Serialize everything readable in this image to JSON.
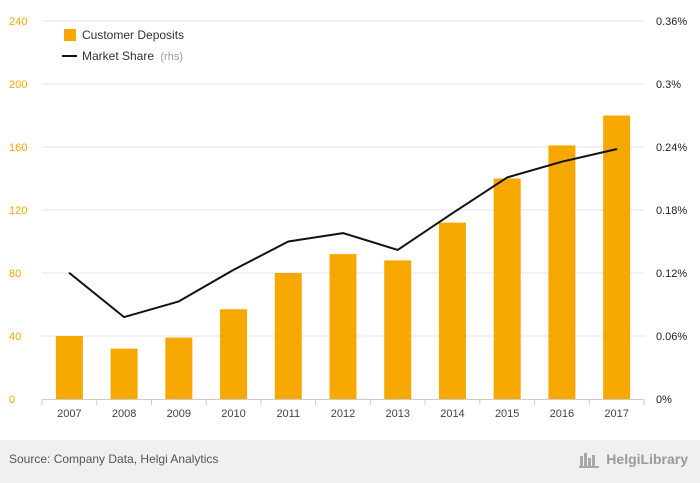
{
  "chart_data": {
    "type": "bar",
    "categories": [
      "2007",
      "2008",
      "2009",
      "2010",
      "2011",
      "2012",
      "2013",
      "2014",
      "2015",
      "2016",
      "2017"
    ],
    "series": [
      {
        "name": "Customer Deposits",
        "type": "bar",
        "axis": "left",
        "values": [
          40,
          32,
          39,
          57,
          80,
          92,
          88,
          112,
          140,
          161,
          180
        ]
      },
      {
        "name": "Market Share",
        "name_suffix": "(rhs)",
        "type": "line",
        "axis": "right",
        "values": [
          0.12,
          0.078,
          0.093,
          0.123,
          0.15,
          0.158,
          0.142,
          0.177,
          0.211,
          0.226,
          0.238
        ]
      }
    ],
    "y_left": {
      "min": 0,
      "max": 240,
      "ticks": [
        "0",
        "40",
        "80",
        "120",
        "160",
        "200",
        "240"
      ]
    },
    "y_right": {
      "min": 0,
      "max": 0.36,
      "ticks": [
        "0%",
        "0.06%",
        "0.12%",
        "0.18%",
        "0.24%",
        "0.3%",
        "0.36%"
      ]
    },
    "grid": true,
    "legend_position": "top-left",
    "colors": {
      "bar": "#f7a800",
      "line": "#111111",
      "left_axis_text": "#f2a900"
    }
  },
  "footer": {
    "source": "Source: Company Data, Helgi Analytics",
    "brand": "HelgiLibrary"
  }
}
